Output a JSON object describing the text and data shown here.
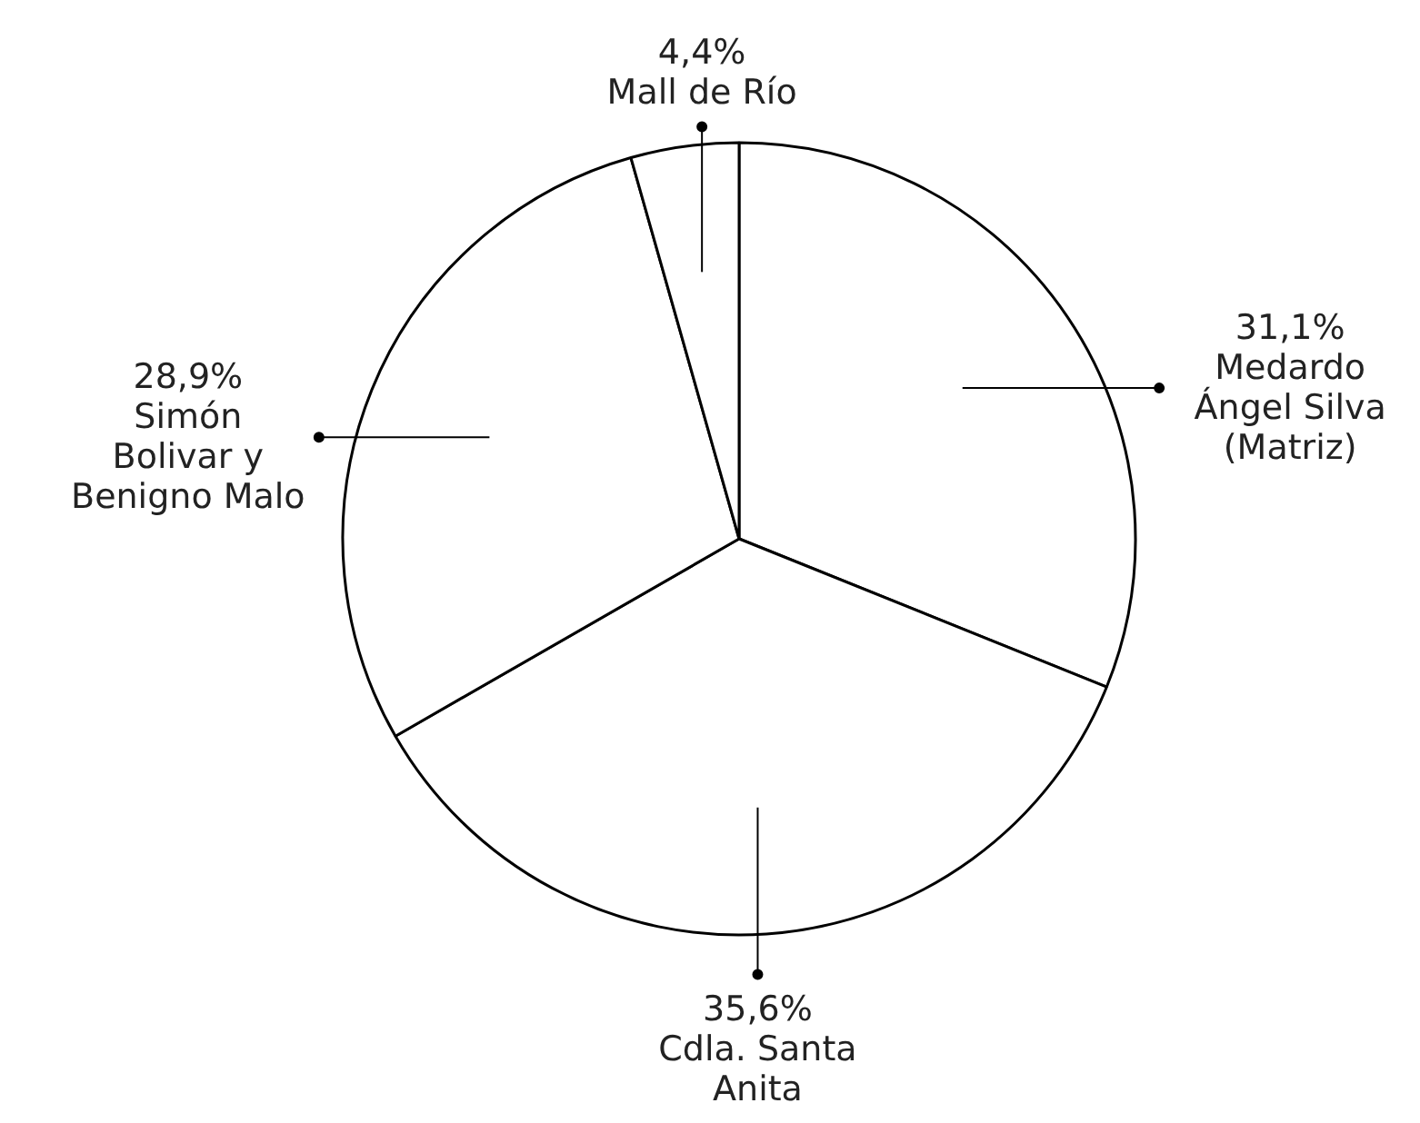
{
  "chart_data": {
    "type": "pie",
    "categories": [
      "Medardo Ángel Silva (Matriz)",
      "Cdla. Santa Anita",
      "Simón Bolivar y Benigno Malo",
      "Mall de Río"
    ],
    "values": [
      31.1,
      35.6,
      28.9,
      4.4
    ],
    "value_labels": [
      "31,1%",
      "35,6%",
      "28,9%",
      "4,4%"
    ],
    "colors": [
      "#ffffff",
      "#ffffff",
      "#ffffff",
      "#ffffff"
    ]
  }
}
